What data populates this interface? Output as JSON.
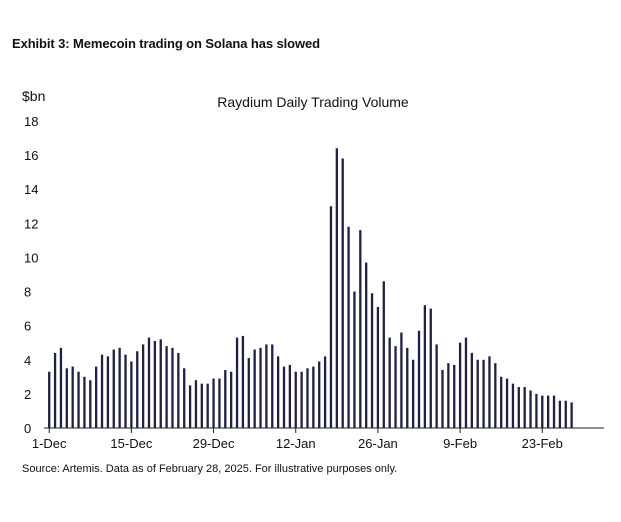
{
  "exhibit": {
    "title": "Exhibit 3: Memecoin trading on Solana has slowed",
    "source": "Source: Artemis. Data as of February 28, 2025. For illustrative purposes only."
  },
  "chart_data": {
    "type": "bar",
    "title": "Raydium Daily Trading Volume",
    "ylabel": "$bn",
    "xlabel": "",
    "ylim": [
      0,
      18
    ],
    "y_ticks": [
      0,
      2,
      4,
      6,
      8,
      10,
      12,
      14,
      16,
      18
    ],
    "x_tick_labels": [
      {
        "label": "1-Dec",
        "index": 0
      },
      {
        "label": "15-Dec",
        "index": 14
      },
      {
        "label": "29-Dec",
        "index": 28
      },
      {
        "label": "12-Jan",
        "index": 42
      },
      {
        "label": "26-Jan",
        "index": 56
      },
      {
        "label": "9-Feb",
        "index": 70
      },
      {
        "label": "23-Feb",
        "index": 84
      }
    ],
    "bar_color": "#1f1f4a",
    "categories": [
      "1-Dec",
      "2-Dec",
      "3-Dec",
      "4-Dec",
      "5-Dec",
      "6-Dec",
      "7-Dec",
      "8-Dec",
      "9-Dec",
      "10-Dec",
      "11-Dec",
      "12-Dec",
      "13-Dec",
      "14-Dec",
      "15-Dec",
      "16-Dec",
      "17-Dec",
      "18-Dec",
      "19-Dec",
      "20-Dec",
      "21-Dec",
      "22-Dec",
      "23-Dec",
      "24-Dec",
      "25-Dec",
      "26-Dec",
      "27-Dec",
      "28-Dec",
      "29-Dec",
      "30-Dec",
      "31-Dec",
      "1-Jan",
      "2-Jan",
      "3-Jan",
      "4-Jan",
      "5-Jan",
      "6-Jan",
      "7-Jan",
      "8-Jan",
      "9-Jan",
      "10-Jan",
      "11-Jan",
      "12-Jan",
      "13-Jan",
      "14-Jan",
      "15-Jan",
      "16-Jan",
      "17-Jan",
      "18-Jan",
      "19-Jan",
      "20-Jan",
      "21-Jan",
      "22-Jan",
      "23-Jan",
      "24-Jan",
      "25-Jan",
      "26-Jan",
      "27-Jan",
      "28-Jan",
      "29-Jan",
      "30-Jan",
      "31-Jan",
      "1-Feb",
      "2-Feb",
      "3-Feb",
      "4-Feb",
      "5-Feb",
      "6-Feb",
      "7-Feb",
      "8-Feb",
      "9-Feb",
      "10-Feb",
      "11-Feb",
      "12-Feb",
      "13-Feb",
      "14-Feb",
      "15-Feb",
      "16-Feb",
      "17-Feb",
      "18-Feb",
      "19-Feb",
      "20-Feb",
      "21-Feb",
      "22-Feb",
      "23-Feb",
      "24-Feb",
      "25-Feb",
      "26-Feb",
      "27-Feb",
      "28-Feb"
    ],
    "values": [
      3.3,
      4.4,
      4.7,
      3.5,
      3.6,
      3.3,
      3.0,
      2.8,
      3.6,
      4.3,
      4.2,
      4.6,
      4.7,
      4.3,
      3.9,
      4.5,
      4.9,
      5.3,
      5.1,
      5.2,
      4.8,
      4.7,
      4.4,
      3.5,
      2.5,
      2.8,
      2.6,
      2.6,
      2.9,
      2.9,
      3.4,
      3.3,
      5.3,
      5.4,
      4.1,
      4.6,
      4.7,
      4.9,
      4.9,
      4.2,
      3.6,
      3.7,
      3.3,
      3.3,
      3.5,
      3.6,
      3.9,
      4.2,
      13.0,
      16.4,
      15.8,
      11.8,
      8.0,
      11.6,
      9.7,
      7.9,
      7.1,
      8.6,
      5.3,
      4.8,
      5.6,
      4.7,
      4.0,
      5.7,
      7.2,
      7.0,
      4.9,
      3.4,
      3.8,
      3.7,
      5.0,
      5.3,
      4.4,
      4.0,
      4.0,
      4.2,
      3.8,
      3.0,
      2.9,
      2.6,
      2.4,
      2.4,
      2.2,
      2.0,
      1.9,
      1.9,
      1.9,
      1.6,
      1.6,
      1.5
    ]
  }
}
